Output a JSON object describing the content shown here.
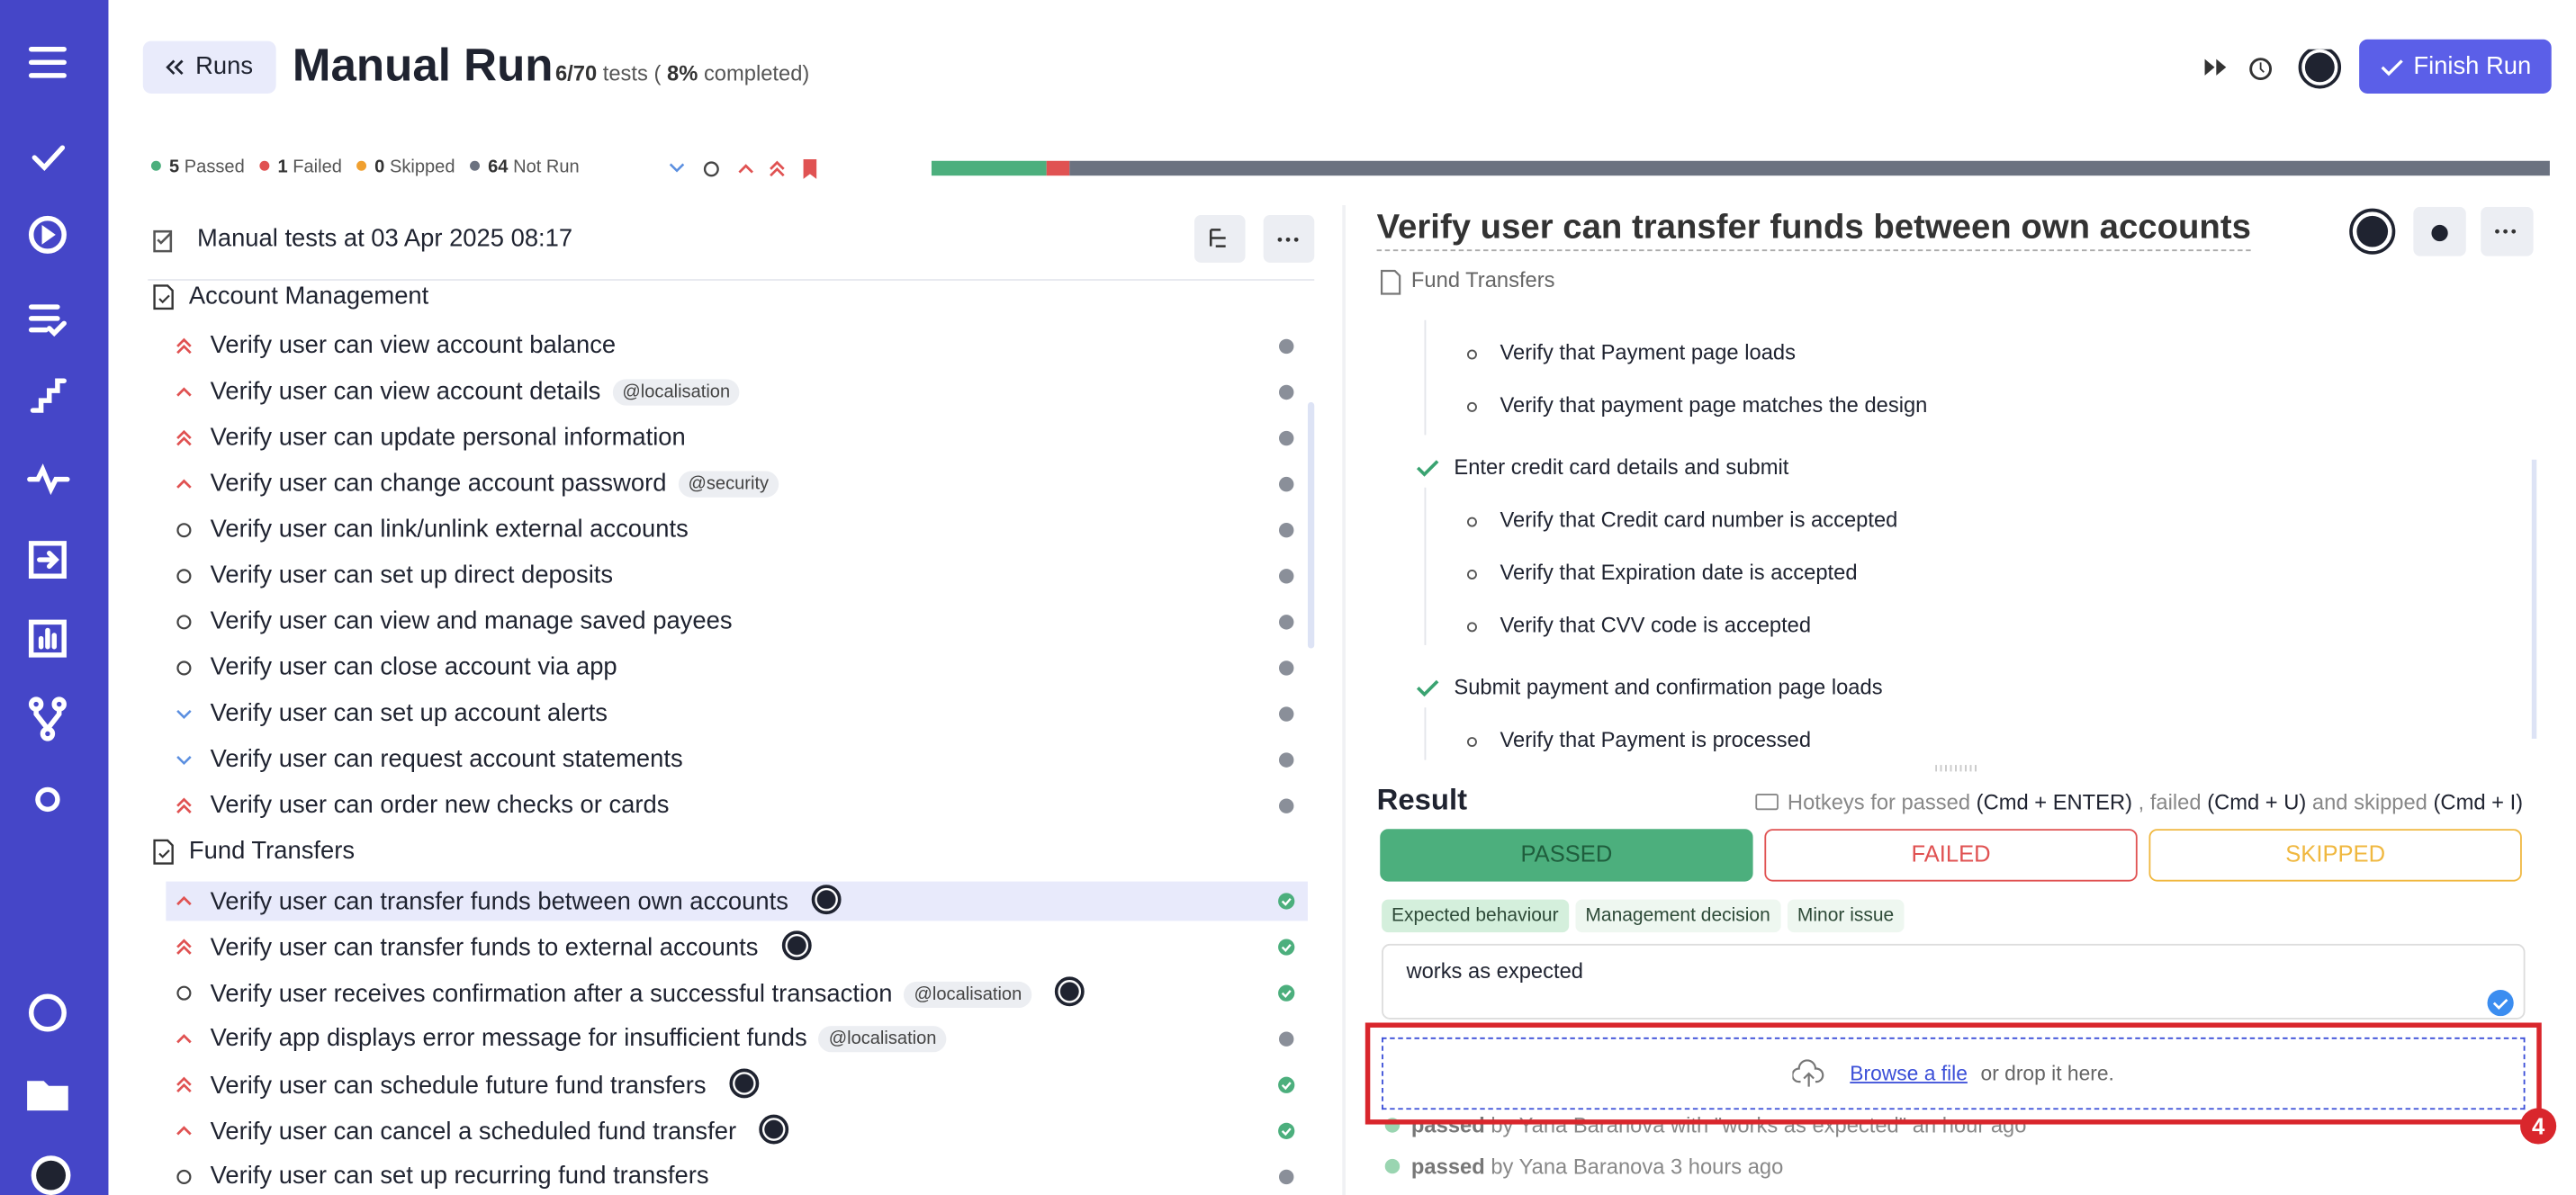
{
  "header": {
    "back": "Runs",
    "title": "Manual Run",
    "count": "6/70",
    "count_suffix": "tests (",
    "percent": "8%",
    "percent_suffix": "completed)",
    "finish": "Finish Run"
  },
  "stats": [
    {
      "count": 5,
      "label": "Passed",
      "color": "#4caf7d"
    },
    {
      "count": 1,
      "label": "Failed",
      "color": "#e05252"
    },
    {
      "count": 0,
      "label": "Skipped",
      "color": "#f0a030"
    },
    {
      "count": 64,
      "label": "Not Run",
      "color": "#6b7280"
    }
  ],
  "tree": {
    "title": "Manual tests at 03 Apr 2025 08:17",
    "suites": [
      {
        "name": "Account Management",
        "tests": [
          {
            "priority": "high",
            "title": "Verify user can view account balance",
            "status": "not_run"
          },
          {
            "priority": "medium",
            "title": "Verify user can view account details",
            "tag": "@localisation",
            "status": "not_run"
          },
          {
            "priority": "high",
            "title": "Verify user can update personal information",
            "status": "not_run"
          },
          {
            "priority": "medium",
            "title": "Verify user can change account password",
            "tag": "@security",
            "status": "not_run"
          },
          {
            "priority": "normal",
            "title": "Verify user can link/unlink external accounts",
            "status": "not_run"
          },
          {
            "priority": "normal",
            "title": "Verify user can set up direct deposits",
            "status": "not_run"
          },
          {
            "priority": "normal",
            "title": "Verify user can view and manage saved payees",
            "status": "not_run"
          },
          {
            "priority": "normal",
            "title": "Verify user can close account via app",
            "status": "not_run"
          },
          {
            "priority": "low",
            "title": "Verify user can set up account alerts",
            "status": "not_run"
          },
          {
            "priority": "low",
            "title": "Verify user can request account statements",
            "status": "not_run"
          },
          {
            "priority": "high",
            "title": "Verify user can order new checks or cards",
            "status": "not_run"
          }
        ]
      },
      {
        "name": "Fund Transfers",
        "tests": [
          {
            "priority": "medium",
            "title": "Verify user can transfer funds between own accounts",
            "assignee": true,
            "status": "passed",
            "selected": true
          },
          {
            "priority": "high",
            "title": "Verify user can transfer funds to external accounts",
            "assignee": true,
            "status": "passed"
          },
          {
            "priority": "normal",
            "title": "Verify user receives confirmation after a successful transaction",
            "tag": "@localisation",
            "assignee": true,
            "status": "passed"
          },
          {
            "priority": "medium",
            "title": "Verify app displays error message for insufficient funds",
            "tag": "@localisation",
            "status": "not_run"
          },
          {
            "priority": "high",
            "title": "Verify user can schedule future fund transfers",
            "assignee": true,
            "status": "passed"
          },
          {
            "priority": "medium",
            "title": "Verify user can cancel a scheduled fund transfer",
            "assignee": true,
            "status": "passed"
          },
          {
            "priority": "normal",
            "title": "Verify user can set up recurring fund transfers",
            "status": "not_run"
          }
        ]
      }
    ]
  },
  "detail": {
    "title": "Verify user can transfer funds between own accounts",
    "suite": "Fund Transfers",
    "steps": [
      {
        "substeps": [
          "Verify that Payment page loads",
          "Verify that payment page matches the design"
        ]
      },
      {
        "text": "Enter credit card details and submit",
        "checked": true,
        "substeps": [
          "Verify that Credit card number is accepted",
          "Verify that Expiration date is accepted",
          "Verify that CVV code is accepted"
        ]
      },
      {
        "text": "Submit payment and confirmation page loads",
        "checked": true,
        "substeps": [
          "Verify that Payment is processed"
        ]
      }
    ],
    "result": "Result",
    "hotkeys": [
      "Hotkeys for passed",
      "(Cmd + ENTER)",
      ", failed",
      "(Cmd + U)",
      "and skipped",
      "(Cmd + I)"
    ],
    "buttons": [
      "PASSED",
      "FAILED",
      "SKIPPED"
    ],
    "tags": [
      "Expected behaviour",
      "Management decision",
      "Minor issue"
    ],
    "comment": "works as expected",
    "browse": "Browse a file",
    "drop": "or drop it here.",
    "badge": "4",
    "history": [
      {
        "status": "passed",
        "by": "by Yana Baranova",
        "with": "with \"works as expected\"",
        "when": "an hour ago"
      },
      {
        "status": "passed",
        "by": "by Yana Baranova 3 hours ago"
      }
    ]
  }
}
